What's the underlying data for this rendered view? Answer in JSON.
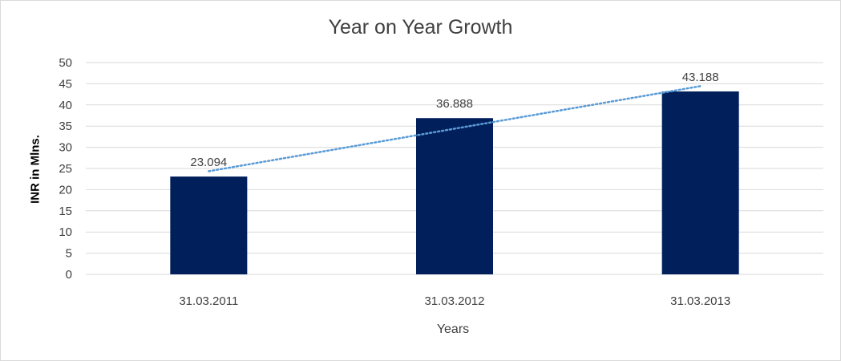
{
  "chart_data": {
    "type": "bar",
    "title": "Year on Year Growth",
    "xlabel": "Years",
    "ylabel": "INR in Mlns.",
    "categories": [
      "31.03.2011",
      "31.03.2012",
      "31.03.2013"
    ],
    "values": [
      23.094,
      36.888,
      43.188
    ],
    "data_labels": [
      "23.094",
      "36.888",
      "43.188"
    ],
    "ylim": [
      0,
      50
    ],
    "yticks": [
      0,
      5,
      10,
      15,
      20,
      25,
      30,
      35,
      40,
      45,
      50
    ],
    "grid": true,
    "legend": "none",
    "trendline": {
      "type": "linear",
      "style": "dotted"
    },
    "colors": {
      "bar": "#001f5b",
      "trendline": "#5b9bd5",
      "grid": "#d9d9d9"
    }
  }
}
